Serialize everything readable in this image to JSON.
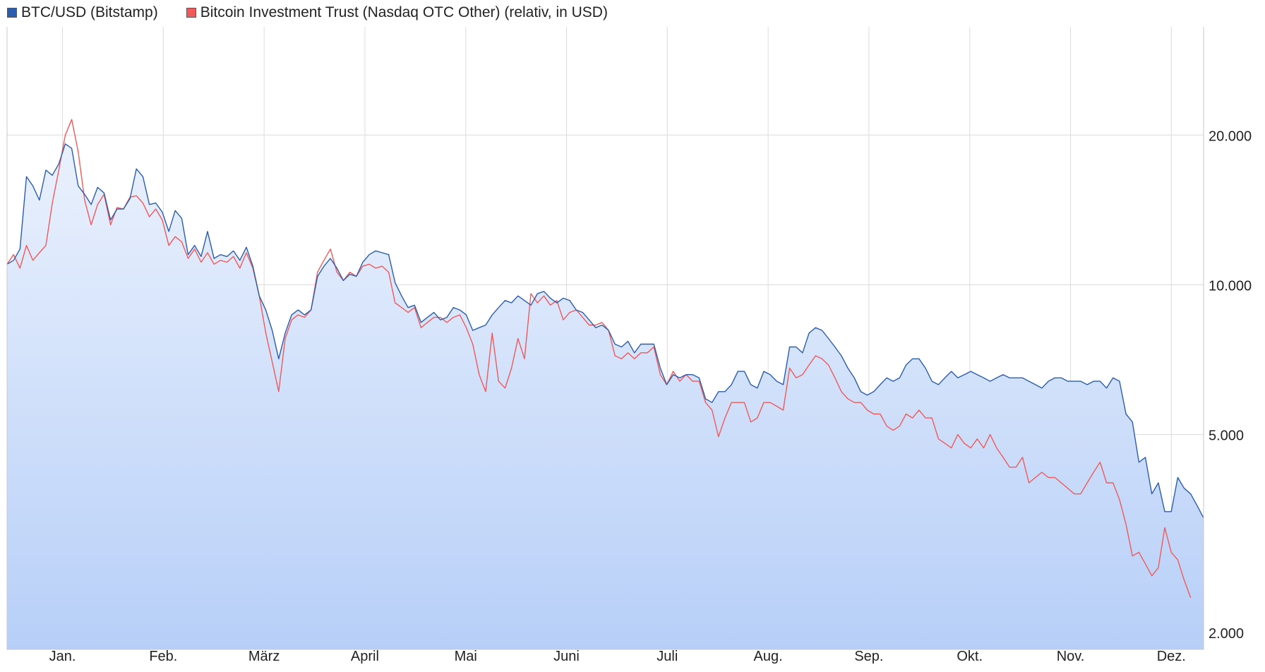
{
  "chart_data": {
    "type": "line",
    "scale": "log",
    "x_tick_labels": [
      "Jan.",
      "Feb.",
      "März",
      "April",
      "Mai",
      "Juni",
      "Juli",
      "Aug.",
      "Sep.",
      "Okt.",
      "Nov.",
      "Dez."
    ],
    "y_ticks": [
      20000,
      10000,
      5000,
      2000
    ],
    "y_tick_labels": [
      "20.000",
      "10.000",
      "5.000",
      "2.000"
    ],
    "ylim": [
      1850,
      33000
    ],
    "grid": true,
    "legend_position": "top-left",
    "series": [
      {
        "name": "BTC/USD (Bitstamp)",
        "color": "#2a5db0",
        "values": [
          11000,
          11200,
          11800,
          16500,
          15800,
          14800,
          17000,
          16600,
          17500,
          19200,
          18800,
          15800,
          15200,
          14500,
          15700,
          15300,
          13500,
          14200,
          14200,
          14900,
          17100,
          16500,
          14500,
          14600,
          14000,
          12800,
          14100,
          13600,
          11500,
          12000,
          11400,
          12800,
          11300,
          11500,
          11400,
          11700,
          11200,
          11900,
          10900,
          9500,
          8900,
          8100,
          7100,
          8000,
          8700,
          8900,
          8700,
          8900,
          10400,
          10900,
          11300,
          10800,
          10200,
          10500,
          10400,
          11100,
          11500,
          11700,
          11600,
          11500,
          10100,
          9500,
          9000,
          9100,
          8400,
          8600,
          8800,
          8500,
          8600,
          9000,
          8900,
          8700,
          8100,
          8200,
          8300,
          8700,
          9000,
          9300,
          9200,
          9500,
          9300,
          9100,
          9600,
          9700,
          9400,
          9200,
          9400,
          9300,
          8900,
          8800,
          8500,
          8200,
          8300,
          8100,
          7600,
          7500,
          7700,
          7300,
          7600,
          7600,
          7600,
          6800,
          6300,
          6600,
          6500,
          6600,
          6600,
          6500,
          5900,
          5800,
          6100,
          6100,
          6300,
          6700,
          6700,
          6300,
          6200,
          6700,
          6600,
          6400,
          6300,
          7500,
          7500,
          7300,
          8000,
          8200,
          8100,
          7800,
          7500,
          7200,
          6800,
          6500,
          6100,
          6000,
          6100,
          6300,
          6500,
          6400,
          6500,
          6900,
          7100,
          7100,
          6800,
          6400,
          6300,
          6500,
          6700,
          6500,
          6600,
          6700,
          6600,
          6500,
          6400,
          6500,
          6600,
          6500,
          6500,
          6500,
          6400,
          6300,
          6200,
          6400,
          6500,
          6500,
          6400,
          6400,
          6400,
          6300,
          6400,
          6400,
          6200,
          6500,
          6400,
          5500,
          5300,
          4400,
          4500,
          3800,
          4000,
          3500,
          3500,
          4100,
          3900,
          3800,
          3600,
          3400
        ]
      },
      {
        "name": "Bitcoin Investment Trust (Nasdaq OTC Other) (relativ, in USD)",
        "color": "#f05a5a",
        "values": [
          11000,
          11500,
          10800,
          12000,
          11200,
          11600,
          12000,
          14600,
          17000,
          20000,
          21500,
          18500,
          14800,
          13200,
          14500,
          15200,
          13200,
          14300,
          14200,
          15000,
          15100,
          14600,
          13700,
          14200,
          13500,
          12000,
          12500,
          12200,
          11300,
          11800,
          11100,
          11600,
          11000,
          11200,
          11100,
          11400,
          10800,
          11600,
          10800,
          9500,
          8000,
          7000,
          6100,
          7800,
          8500,
          8700,
          8600,
          8900,
          10600,
          11200,
          11800,
          10600,
          10200,
          10600,
          10400,
          10900,
          11000,
          10800,
          10900,
          10600,
          9200,
          9000,
          8800,
          9000,
          8200,
          8400,
          8600,
          8600,
          8400,
          8600,
          8700,
          8200,
          7600,
          6600,
          6100,
          8000,
          6400,
          6200,
          6800,
          7800,
          7100,
          9600,
          9200,
          9500,
          9100,
          9300,
          8500,
          8800,
          8900,
          8600,
          8300,
          8300,
          8400,
          8100,
          7200,
          7100,
          7300,
          7100,
          7300,
          7300,
          7500,
          6600,
          6300,
          6700,
          6400,
          6600,
          6400,
          6400,
          5800,
          5600,
          4950,
          5400,
          5800,
          5800,
          5800,
          5300,
          5400,
          5800,
          5800,
          5700,
          5600,
          6800,
          6500,
          6600,
          6900,
          7200,
          7100,
          6900,
          6500,
          6100,
          5900,
          5800,
          5800,
          5600,
          5500,
          5500,
          5200,
          5100,
          5200,
          5500,
          5400,
          5600,
          5400,
          5400,
          4900,
          4800,
          4700,
          5000,
          4800,
          4700,
          4900,
          4700,
          5000,
          4700,
          4500,
          4300,
          4300,
          4500,
          4000,
          4100,
          4200,
          4100,
          4100,
          4000,
          3900,
          3800,
          3800,
          4000,
          4200,
          4400,
          4000,
          4000,
          3700,
          3300,
          2850,
          2900,
          2750,
          2600,
          2700,
          3250,
          2900,
          2800,
          2550,
          2350
        ]
      }
    ]
  }
}
